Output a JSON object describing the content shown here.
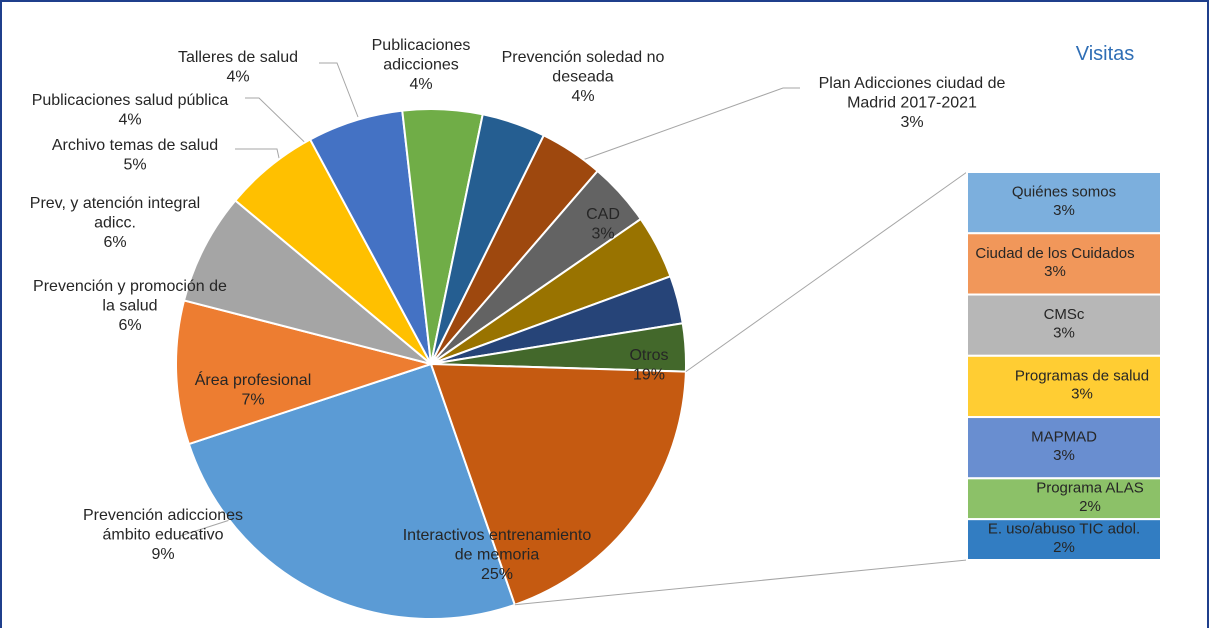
{
  "chart_data": {
    "type": "pie",
    "subtype": "pie-of-pie",
    "title": "Visitas",
    "colors": {
      "title": "#2f6eb5",
      "frame": "#1f3f8c",
      "leader": "#a6a6a6"
    },
    "slices": [
      {
        "label": "Interactivos entrenamiento de memoria",
        "value": 25,
        "pct": "25%",
        "color": "#5b9bd5"
      },
      {
        "label": "Prevención adicciones ámbito educativo",
        "value": 9,
        "pct": "9%",
        "color": "#ed7d31"
      },
      {
        "label": "Área profesional",
        "value": 7,
        "pct": "7%",
        "color": "#a5a5a5"
      },
      {
        "label": "Prevención y promoción de la salud",
        "value": 6,
        "pct": "6%",
        "color": "#ffc000"
      },
      {
        "label": "Prev, y atención integral adicc.",
        "value": 6,
        "pct": "6%",
        "color": "#4472c4"
      },
      {
        "label": "Archivo temas de salud",
        "value": 5,
        "pct": "5%",
        "color": "#70ad47"
      },
      {
        "label": "Publicaciones salud pública",
        "value": 4,
        "pct": "4%",
        "color": "#255e91"
      },
      {
        "label": "Talleres de salud",
        "value": 4,
        "pct": "4%",
        "color": "#9e480e"
      },
      {
        "label": "Publicaciones adicciones",
        "value": 4,
        "pct": "4%",
        "color": "#636363"
      },
      {
        "label": "Prevención soledad no deseada",
        "value": 4,
        "pct": "4%",
        "color": "#997300"
      },
      {
        "label": "Plan Adicciones ciudad de Madrid 2017-2021",
        "value": 3,
        "pct": "3%",
        "color": "#264478"
      },
      {
        "label": "CAD",
        "value": 3,
        "pct": "3%",
        "color": "#43682b"
      },
      {
        "label": "Otros",
        "value": 19,
        "pct": "19%",
        "color": "#c55a11"
      }
    ],
    "secondary": [
      {
        "label": "Quiénes somos",
        "value": 3,
        "pct": "3%",
        "color": "#7cafdd"
      },
      {
        "label": "Ciudad de los Cuidados",
        "value": 3,
        "pct": "3%",
        "color": "#f1975a"
      },
      {
        "label": "CMSc",
        "value": 3,
        "pct": "3%",
        "color": "#b7b7b7"
      },
      {
        "label": "Programas de salud",
        "value": 3,
        "pct": "3%",
        "color": "#ffcd33"
      },
      {
        "label": "MAPMAD",
        "value": 3,
        "pct": "3%",
        "color": "#698ed0"
      },
      {
        "label": "Programa ALAS",
        "value": 2,
        "pct": "2%",
        "color": "#8cc168"
      },
      {
        "label": "E. uso/abuso TIC adol.",
        "value": 2,
        "pct": "2%",
        "color": "#327dc2"
      }
    ]
  }
}
